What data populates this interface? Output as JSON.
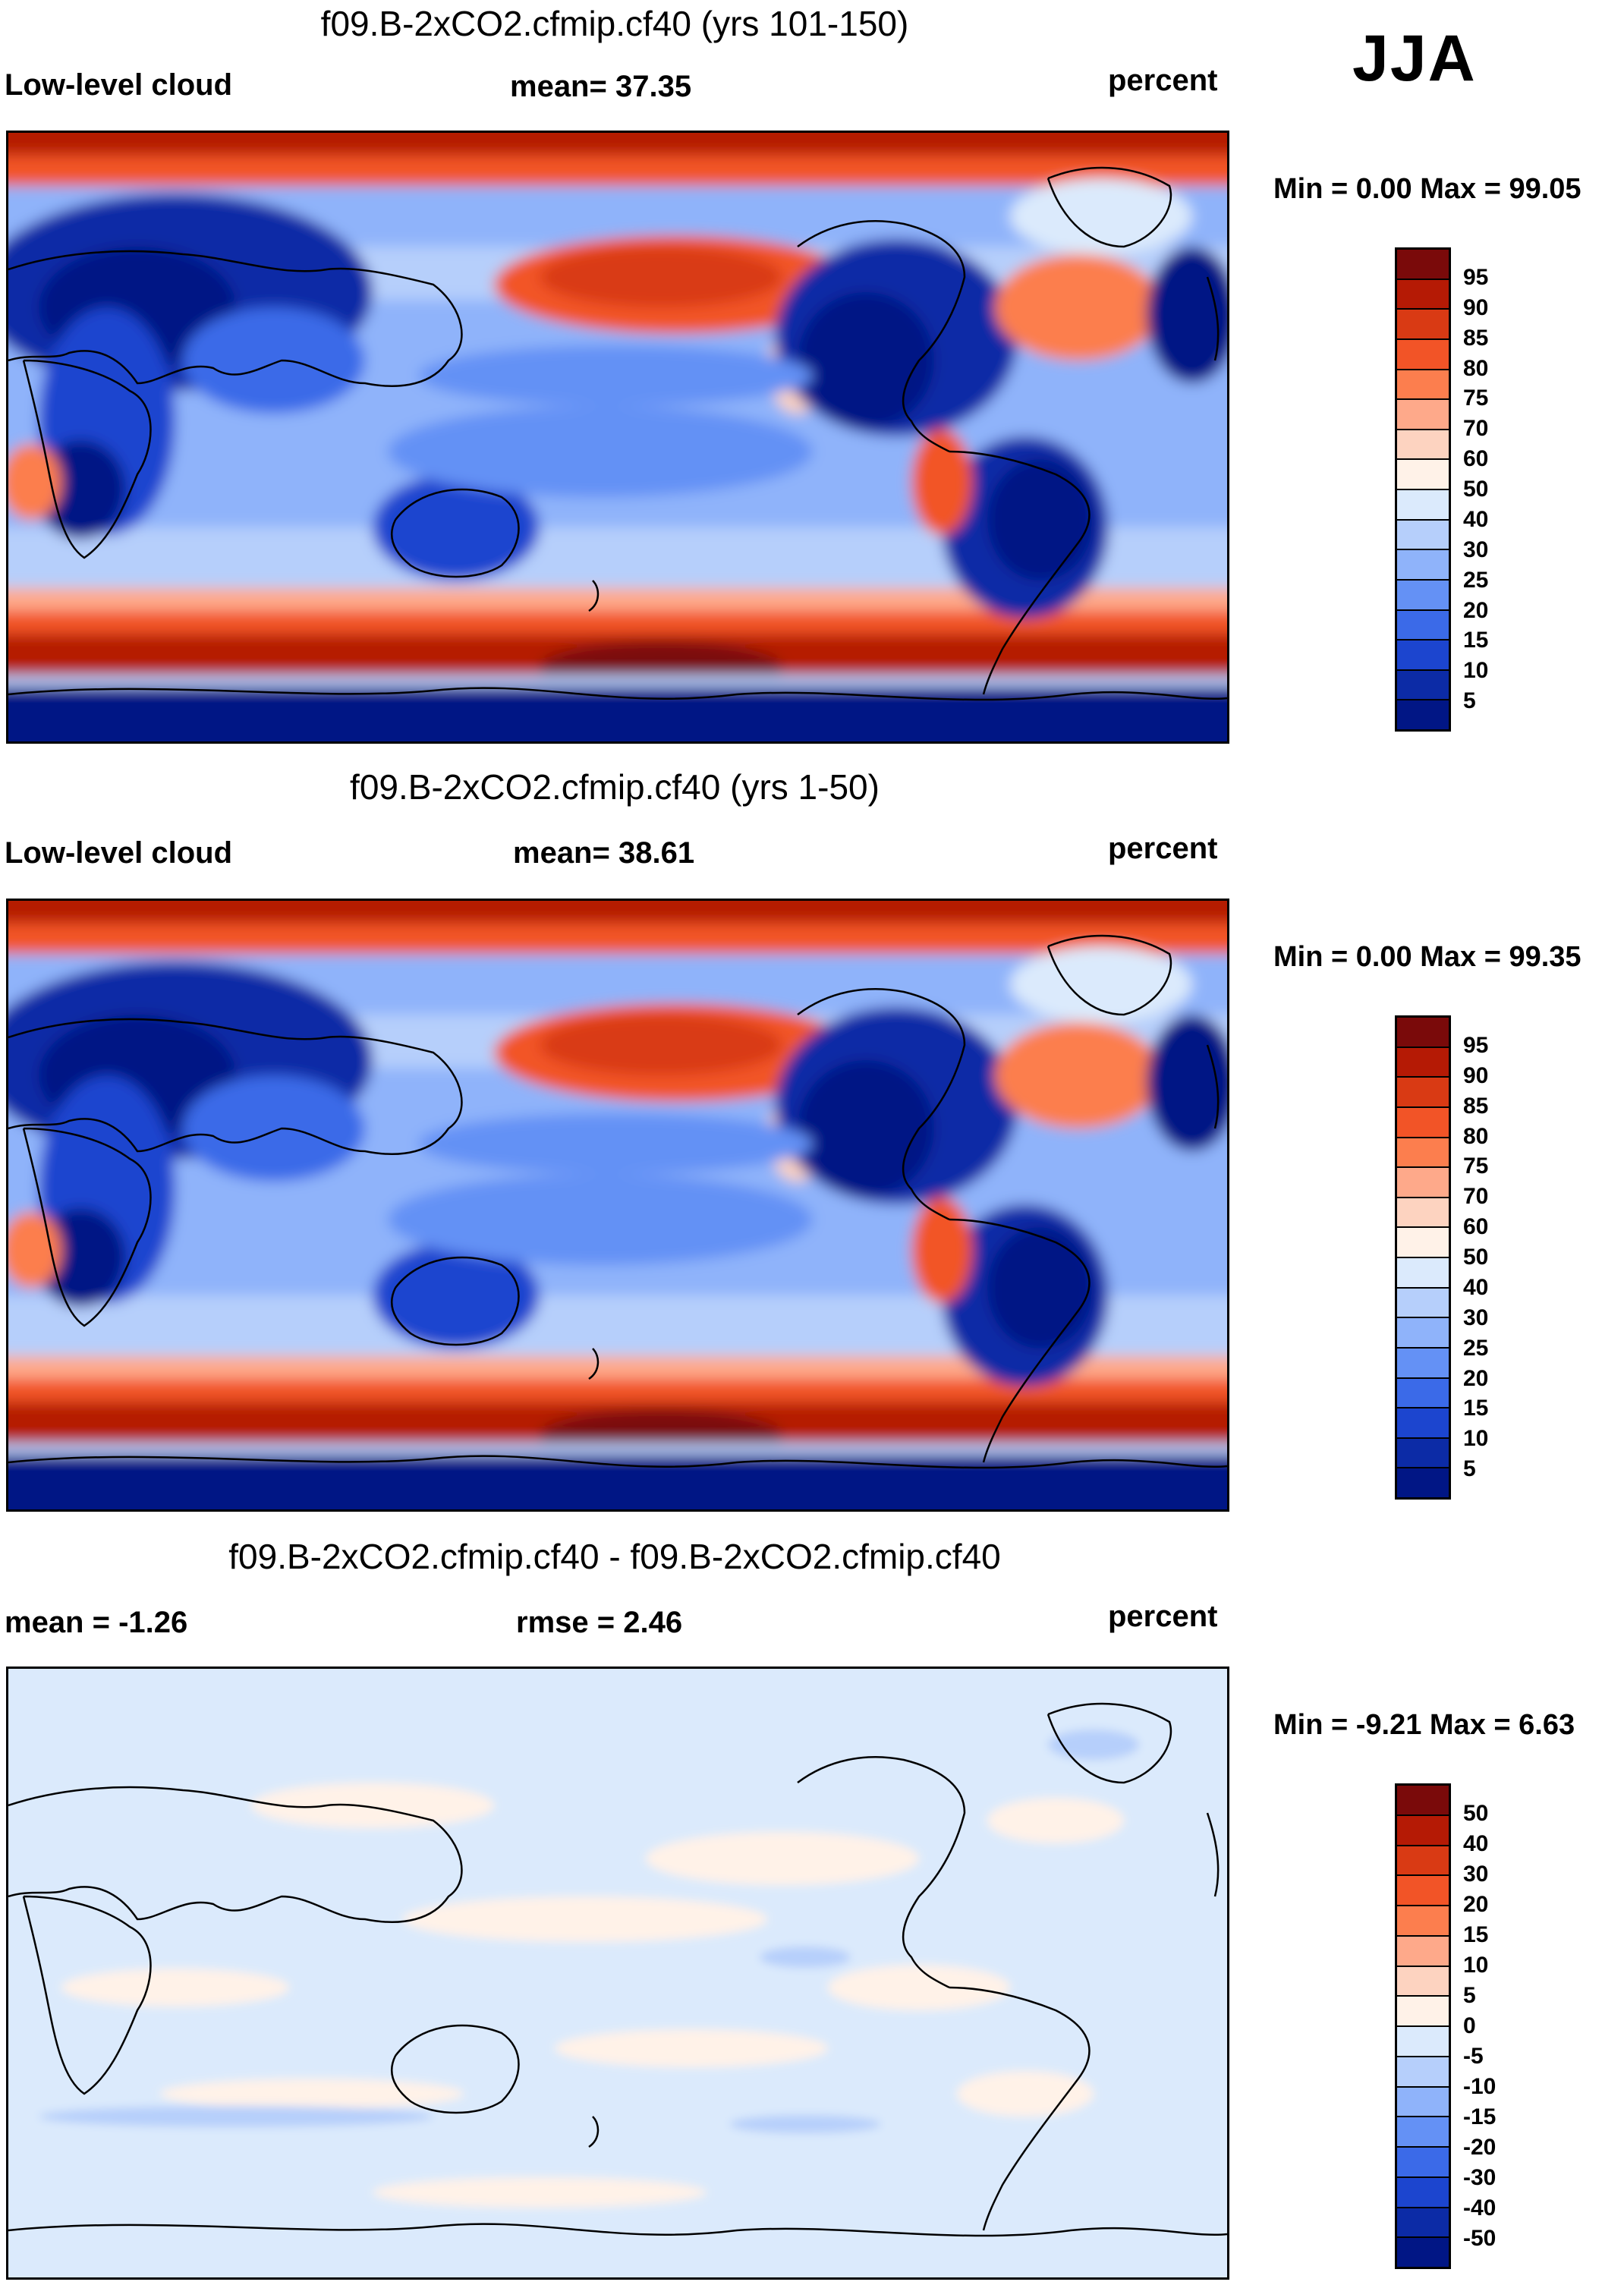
{
  "season": "JJA",
  "panels": [
    {
      "title": "f09.B-2xCO2.cfmip.cf40 (yrs 101-150)",
      "left_label": "Low-level cloud",
      "center_label": "mean=  37.35",
      "right_label": "percent",
      "minmax": "Min =   0.00 Max =  99.05",
      "legend": {
        "ticks": [
          "95",
          "90",
          "85",
          "80",
          "75",
          "70",
          "60",
          "50",
          "40",
          "30",
          "25",
          "20",
          "15",
          "10",
          "5"
        ],
        "colors": [
          "#7a0a0a",
          "#b51a05",
          "#d93a14",
          "#f25427",
          "#fc7e4e",
          "#fea98a",
          "#fdd3c0",
          "#fff2e8",
          "#dbeafc",
          "#b6cffb",
          "#8fb3fa",
          "#6491f5",
          "#3b6ae8",
          "#1c45cf",
          "#0c2ba6",
          "#011685"
        ]
      }
    },
    {
      "title": "f09.B-2xCO2.cfmip.cf40 (yrs 1-50)",
      "left_label": "Low-level cloud",
      "center_label": "mean=  38.61",
      "right_label": "percent",
      "minmax": "Min =   0.00 Max =  99.35",
      "legend": {
        "ticks": [
          "95",
          "90",
          "85",
          "80",
          "75",
          "70",
          "60",
          "50",
          "40",
          "30",
          "25",
          "20",
          "15",
          "10",
          "5"
        ],
        "colors": [
          "#7a0a0a",
          "#b51a05",
          "#d93a14",
          "#f25427",
          "#fc7e4e",
          "#fea98a",
          "#fdd3c0",
          "#fff2e8",
          "#dbeafc",
          "#b6cffb",
          "#8fb3fa",
          "#6491f5",
          "#3b6ae8",
          "#1c45cf",
          "#0c2ba6",
          "#011685"
        ]
      }
    },
    {
      "title": "f09.B-2xCO2.cfmip.cf40 - f09.B-2xCO2.cfmip.cf40",
      "left_label": "mean =  -1.26",
      "center_label": "rmse =   2.46",
      "right_label": "percent",
      "minmax": "Min =  -9.21 Max =   6.63",
      "legend": {
        "ticks": [
          "50",
          "40",
          "30",
          "20",
          "15",
          "10",
          "5",
          "0",
          "-5",
          "-10",
          "-15",
          "-20",
          "-30",
          "-40",
          "-50"
        ],
        "colors": [
          "#7a0a0a",
          "#b51a05",
          "#d93a14",
          "#f25427",
          "#fc7e4e",
          "#fea98a",
          "#fdd3c0",
          "#fff2e8",
          "#dbeafc",
          "#b6cffb",
          "#8fb3fa",
          "#6491f5",
          "#3b6ae8",
          "#1c45cf",
          "#0c2ba6",
          "#011685"
        ]
      }
    }
  ]
}
